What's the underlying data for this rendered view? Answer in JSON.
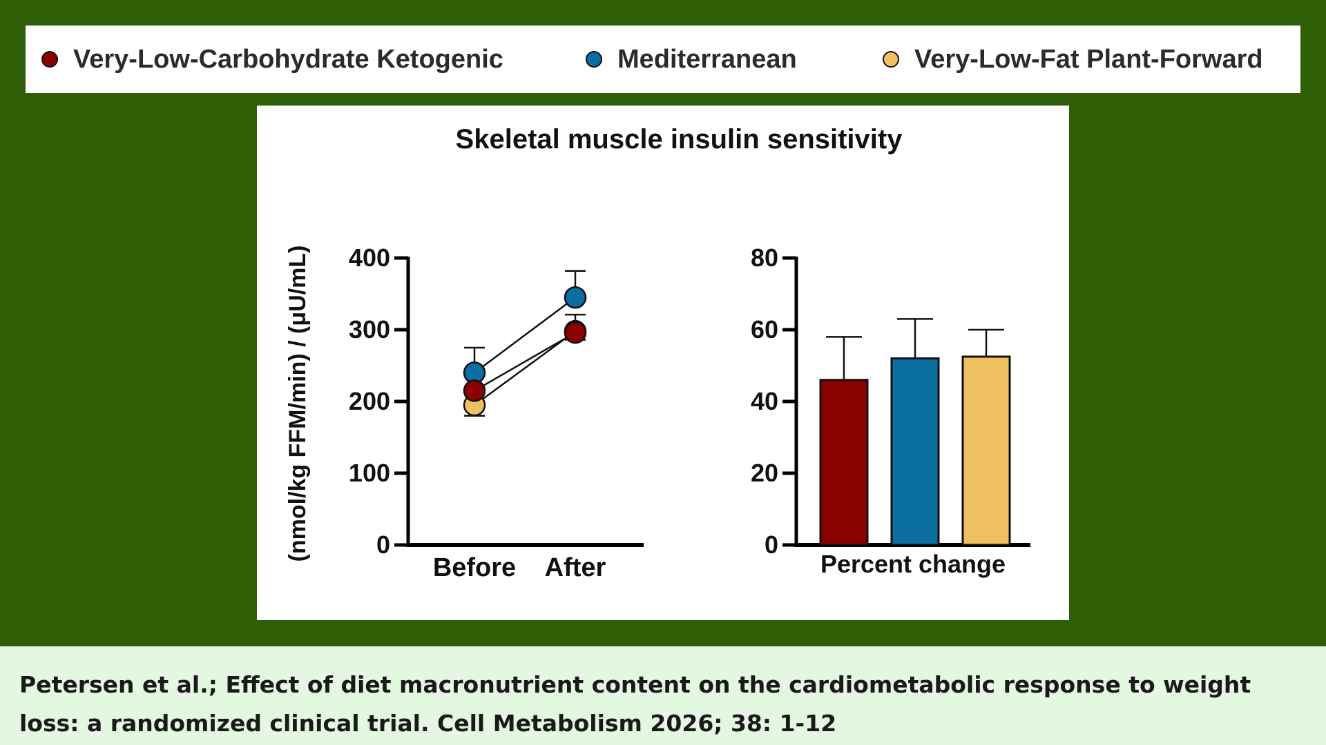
{
  "legend": [
    {
      "label": "Very-Low-Carbohydrate Ketogenic",
      "color": "#8b0000"
    },
    {
      "label": "Mediterranean",
      "color": "#0b6ea0"
    },
    {
      "label": "Very-Low-Fat Plant-Forward",
      "color": "#f0c060"
    }
  ],
  "citation": "Petersen et al.; Effect of diet macronutrient content on the cardiometabolic response to weight loss: a randomized clinical trial. Cell Metabolism 2026; 38: 1-12",
  "chart_data": [
    {
      "type": "line",
      "title": "Skeletal muscle insulin sensitivity",
      "ylabel": "(nmol/kg FFM/min) / (μU/mL)",
      "categories": [
        "Before",
        "After"
      ],
      "ylim": [
        0,
        400
      ],
      "yticks": [
        0,
        100,
        200,
        300,
        400
      ],
      "series": [
        {
          "name": "Very-Low-Carbohydrate Ketogenic",
          "color": "#8b0000",
          "values": [
            215,
            296
          ],
          "errors": [
            22,
            25
          ]
        },
        {
          "name": "Mediterranean",
          "color": "#0b6ea0",
          "values": [
            240,
            345
          ],
          "errors": [
            35,
            37
          ]
        },
        {
          "name": "Very-Low-Fat Plant-Forward",
          "color": "#f0c060",
          "values": [
            195,
            298
          ],
          "errors": [
            15,
            12
          ]
        }
      ]
    },
    {
      "type": "bar",
      "xlabel": "Percent change",
      "ylim": [
        0,
        80
      ],
      "yticks": [
        0,
        20,
        40,
        60,
        80
      ],
      "series": [
        {
          "name": "Very-Low-Carbohydrate Ketogenic",
          "color": "#8b0000",
          "value": 46,
          "error": 12
        },
        {
          "name": "Mediterranean",
          "color": "#0b6ea0",
          "value": 52,
          "error": 11
        },
        {
          "name": "Very-Low-Fat Plant-Forward",
          "color": "#f0c060",
          "value": 52.5,
          "error": 7.5
        }
      ]
    }
  ]
}
